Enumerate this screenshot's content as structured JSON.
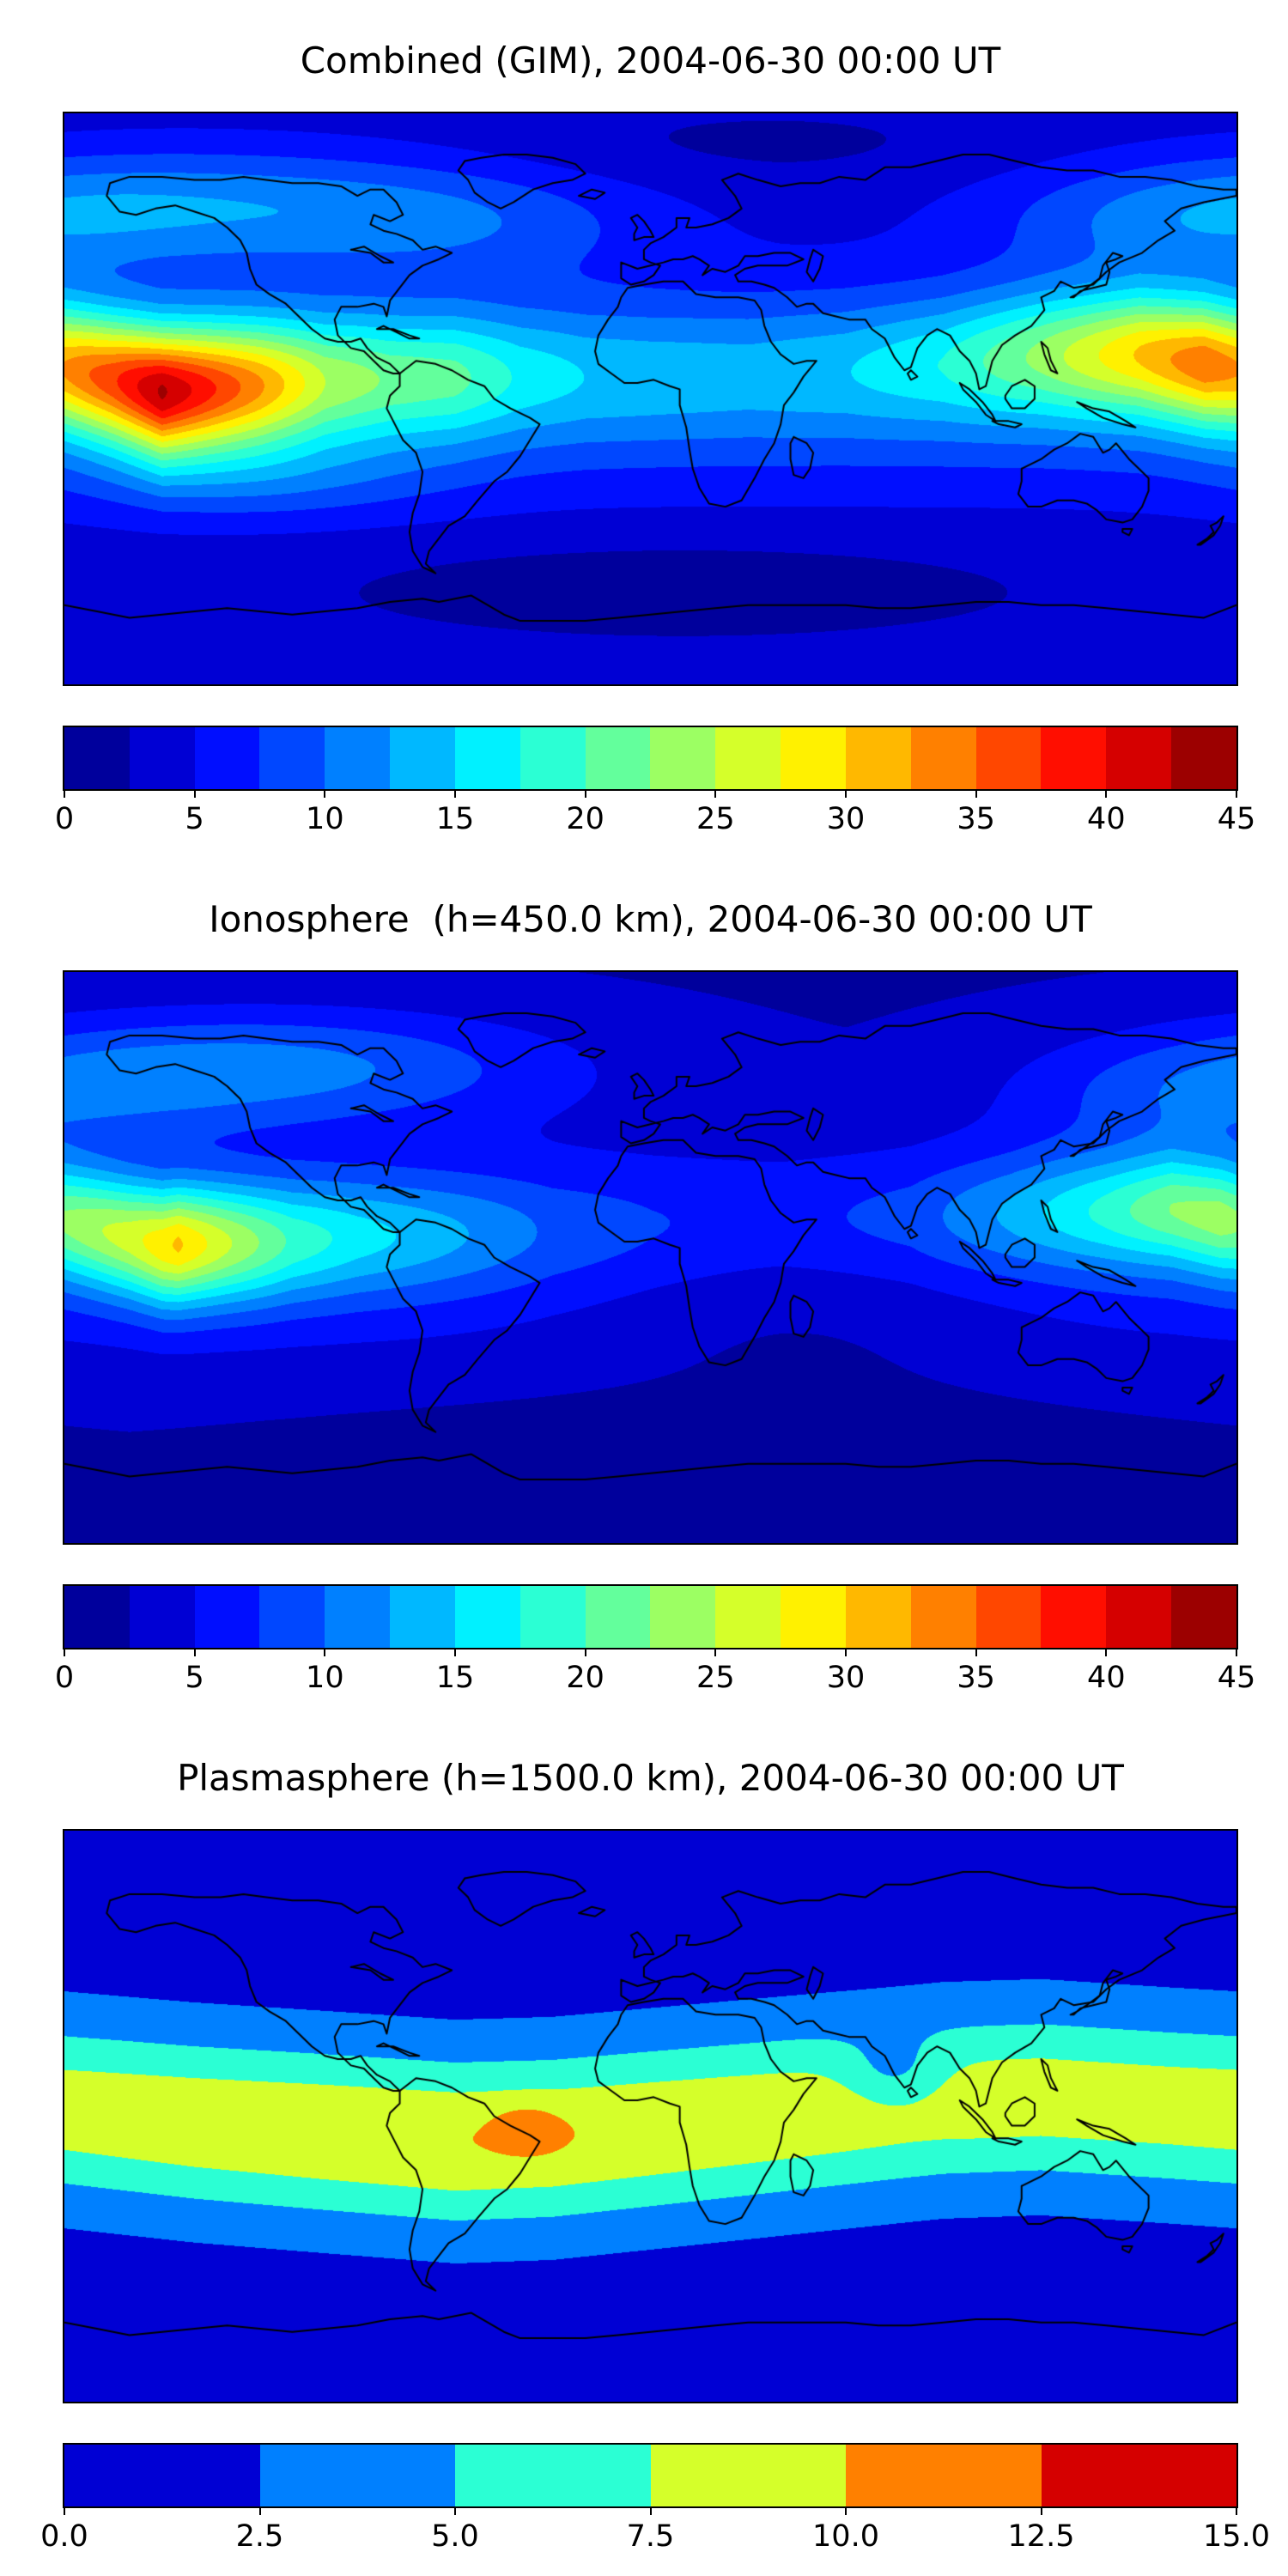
{
  "style_colors": {
    "background": "#ffffff",
    "coastline": "#000000",
    "text": "#000000",
    "colormap": "jet"
  },
  "chart_data": [
    {
      "type": "heatmap",
      "title": "Combined (GIM), 2004-06-30 00:00 UT",
      "projection": "equirectangular",
      "lon_range": [
        -180,
        180
      ],
      "lat_range": [
        -90,
        90
      ],
      "grid": false,
      "colormap": "jet",
      "colorbar": {
        "vmin": 0,
        "vmax": 45,
        "step": 2.5,
        "tick_values": [
          0,
          5,
          10,
          15,
          20,
          25,
          30,
          35,
          40,
          45
        ],
        "tick_labels": [
          "0",
          "5",
          "10",
          "15",
          "20",
          "25",
          "30",
          "35",
          "40",
          "45"
        ],
        "orientation": "horizontal"
      },
      "field": {
        "base": {
          "offset": 3.5,
          "equator_amp": 7.5,
          "equator_lat": 5,
          "equator_sigma": 22
        },
        "band": {
          "sigma_lat": 14,
          "amp_by_lon": [
            [
              -180,
              22
            ],
            [
              -165,
              26
            ],
            [
              -150,
              32
            ],
            [
              -135,
              27
            ],
            [
              -120,
              22
            ],
            [
              -100,
              14
            ],
            [
              -80,
              11
            ],
            [
              -60,
              10
            ],
            [
              -40,
              6
            ],
            [
              -20,
              4
            ],
            [
              0,
              3.5
            ],
            [
              30,
              3
            ],
            [
              60,
              4
            ],
            [
              90,
              7
            ],
            [
              120,
              13
            ],
            [
              150,
              20
            ],
            [
              170,
              24
            ],
            [
              180,
              22
            ]
          ],
          "center_lat_by_lon": [
            [
              -180,
              10
            ],
            [
              -150,
              2
            ],
            [
              -120,
              4
            ],
            [
              -90,
              6
            ],
            [
              -60,
              7
            ],
            [
              -30,
              8
            ],
            [
              0,
              8
            ],
            [
              30,
              9
            ],
            [
              60,
              11
            ],
            [
              90,
              13
            ],
            [
              120,
              15
            ],
            [
              150,
              15
            ],
            [
              180,
              10
            ]
          ]
        },
        "features": [
          {
            "lon": -140,
            "lat": 62,
            "amp": 7,
            "sigma_lon": 65,
            "sigma_lat": 13
          },
          {
            "lon": -60,
            "lat": 55,
            "amp": 4,
            "sigma_lon": 45,
            "sigma_lat": 12
          },
          {
            "lon": 165,
            "lat": 55,
            "amp": 4,
            "sigma_lon": 40,
            "sigma_lat": 12
          },
          {
            "lon": 10,
            "lat": -60,
            "amp": -3,
            "sigma_lon": 70,
            "sigma_lat": 10
          },
          {
            "lon": 35,
            "lat": 80,
            "amp": -1.5,
            "sigma_lon": 60,
            "sigma_lat": 9
          },
          {
            "lon": -120,
            "lat": -25,
            "amp": 4,
            "sigma_lon": 40,
            "sigma_lat": 10
          }
        ]
      }
    },
    {
      "type": "heatmap",
      "title": "Ionosphere  (h=450.0 km), 2004-06-30 00:00 UT",
      "projection": "equirectangular",
      "lon_range": [
        -180,
        180
      ],
      "lat_range": [
        -90,
        90
      ],
      "grid": false,
      "colormap": "jet",
      "colorbar": {
        "vmin": 0,
        "vmax": 45,
        "step": 2.5,
        "tick_values": [
          0,
          5,
          10,
          15,
          20,
          25,
          30,
          35,
          40,
          45
        ],
        "tick_labels": [
          "0",
          "5",
          "10",
          "15",
          "20",
          "25",
          "30",
          "35",
          "40",
          "45"
        ],
        "orientation": "horizontal"
      },
      "field": {
        "base": {
          "offset": 2.3,
          "equator_amp": 5.2,
          "equator_lat": 2,
          "equator_sigma": 24
        },
        "band": {
          "sigma_lat": 13,
          "amp_by_lon": [
            [
              -180,
              16
            ],
            [
              -160,
              19
            ],
            [
              -145,
              23
            ],
            [
              -130,
              18
            ],
            [
              -110,
              12
            ],
            [
              -90,
              9
            ],
            [
              -70,
              7
            ],
            [
              -50,
              5
            ],
            [
              -30,
              3
            ],
            [
              0,
              2
            ],
            [
              40,
              1.5
            ],
            [
              80,
              3
            ],
            [
              110,
              7
            ],
            [
              140,
              12
            ],
            [
              160,
              16
            ],
            [
              175,
              17
            ],
            [
              180,
              16
            ]
          ],
          "center_lat_by_lon": [
            [
              -180,
              12
            ],
            [
              -150,
              4
            ],
            [
              -120,
              5
            ],
            [
              -90,
              7
            ],
            [
              -60,
              8
            ],
            [
              -30,
              9
            ],
            [
              0,
              10
            ],
            [
              40,
              11
            ],
            [
              80,
              13
            ],
            [
              120,
              15
            ],
            [
              160,
              16
            ],
            [
              180,
              12
            ]
          ]
        },
        "features": [
          {
            "lon": -120,
            "lat": 60,
            "amp": 8.5,
            "sigma_lon": 65,
            "sigma_lat": 13
          },
          {
            "lon": 45,
            "lat": -10,
            "amp": -3.5,
            "sigma_lon": 55,
            "sigma_lat": 20
          },
          {
            "lon": 20,
            "lat": -60,
            "amp": -1.5,
            "sigma_lon": 80,
            "sigma_lat": 10
          },
          {
            "lon": 170,
            "lat": 50,
            "amp": 4,
            "sigma_lon": 40,
            "sigma_lat": 12
          }
        ]
      }
    },
    {
      "type": "heatmap",
      "title": "Plasmasphere (h=1500.0 km), 2004-06-30 00:00 UT",
      "projection": "equirectangular",
      "lon_range": [
        -180,
        180
      ],
      "lat_range": [
        -90,
        90
      ],
      "grid": false,
      "colormap": "jet",
      "colorbar": {
        "vmin": 0,
        "vmax": 15,
        "step": 2.5,
        "tick_values": [
          0,
          2.5,
          5,
          7.5,
          10,
          12.5,
          15
        ],
        "tick_labels": [
          "0.0",
          "2.5",
          "5.0",
          "7.5",
          "10.0",
          "12.5",
          "15.0"
        ],
        "orientation": "horizontal"
      },
      "field": {
        "base": {
          "offset": 1.4,
          "equator_amp": 0,
          "equator_lat": 0,
          "equator_sigma": 30
        },
        "band": {
          "sigma_lat": 19,
          "amp_by_lon": [
            [
              -180,
              7.6
            ],
            [
              -140,
              8.0
            ],
            [
              -100,
              8.3
            ],
            [
              -60,
              8.5
            ],
            [
              -30,
              8.4
            ],
            [
              0,
              8.2
            ],
            [
              40,
              7.9
            ],
            [
              80,
              7.6
            ],
            [
              120,
              7.5
            ],
            [
              160,
              7.5
            ],
            [
              180,
              7.6
            ]
          ],
          "center_lat_by_lon": [
            [
              -180,
              2
            ],
            [
              -140,
              -2
            ],
            [
              -100,
              -5
            ],
            [
              -60,
              -8
            ],
            [
              -30,
              -7
            ],
            [
              0,
              -4
            ],
            [
              30,
              -1
            ],
            [
              60,
              2
            ],
            [
              90,
              5
            ],
            [
              120,
              6
            ],
            [
              150,
              4
            ],
            [
              180,
              2
            ]
          ]
        },
        "features": [
          {
            "lon": -38,
            "lat": -4,
            "amp": 2.4,
            "sigma_lon": 7,
            "sigma_lat": 5
          },
          {
            "lon": 75,
            "lat": 13,
            "amp": -3.2,
            "sigma_lon": 11,
            "sigma_lat": 8
          }
        ]
      }
    }
  ]
}
